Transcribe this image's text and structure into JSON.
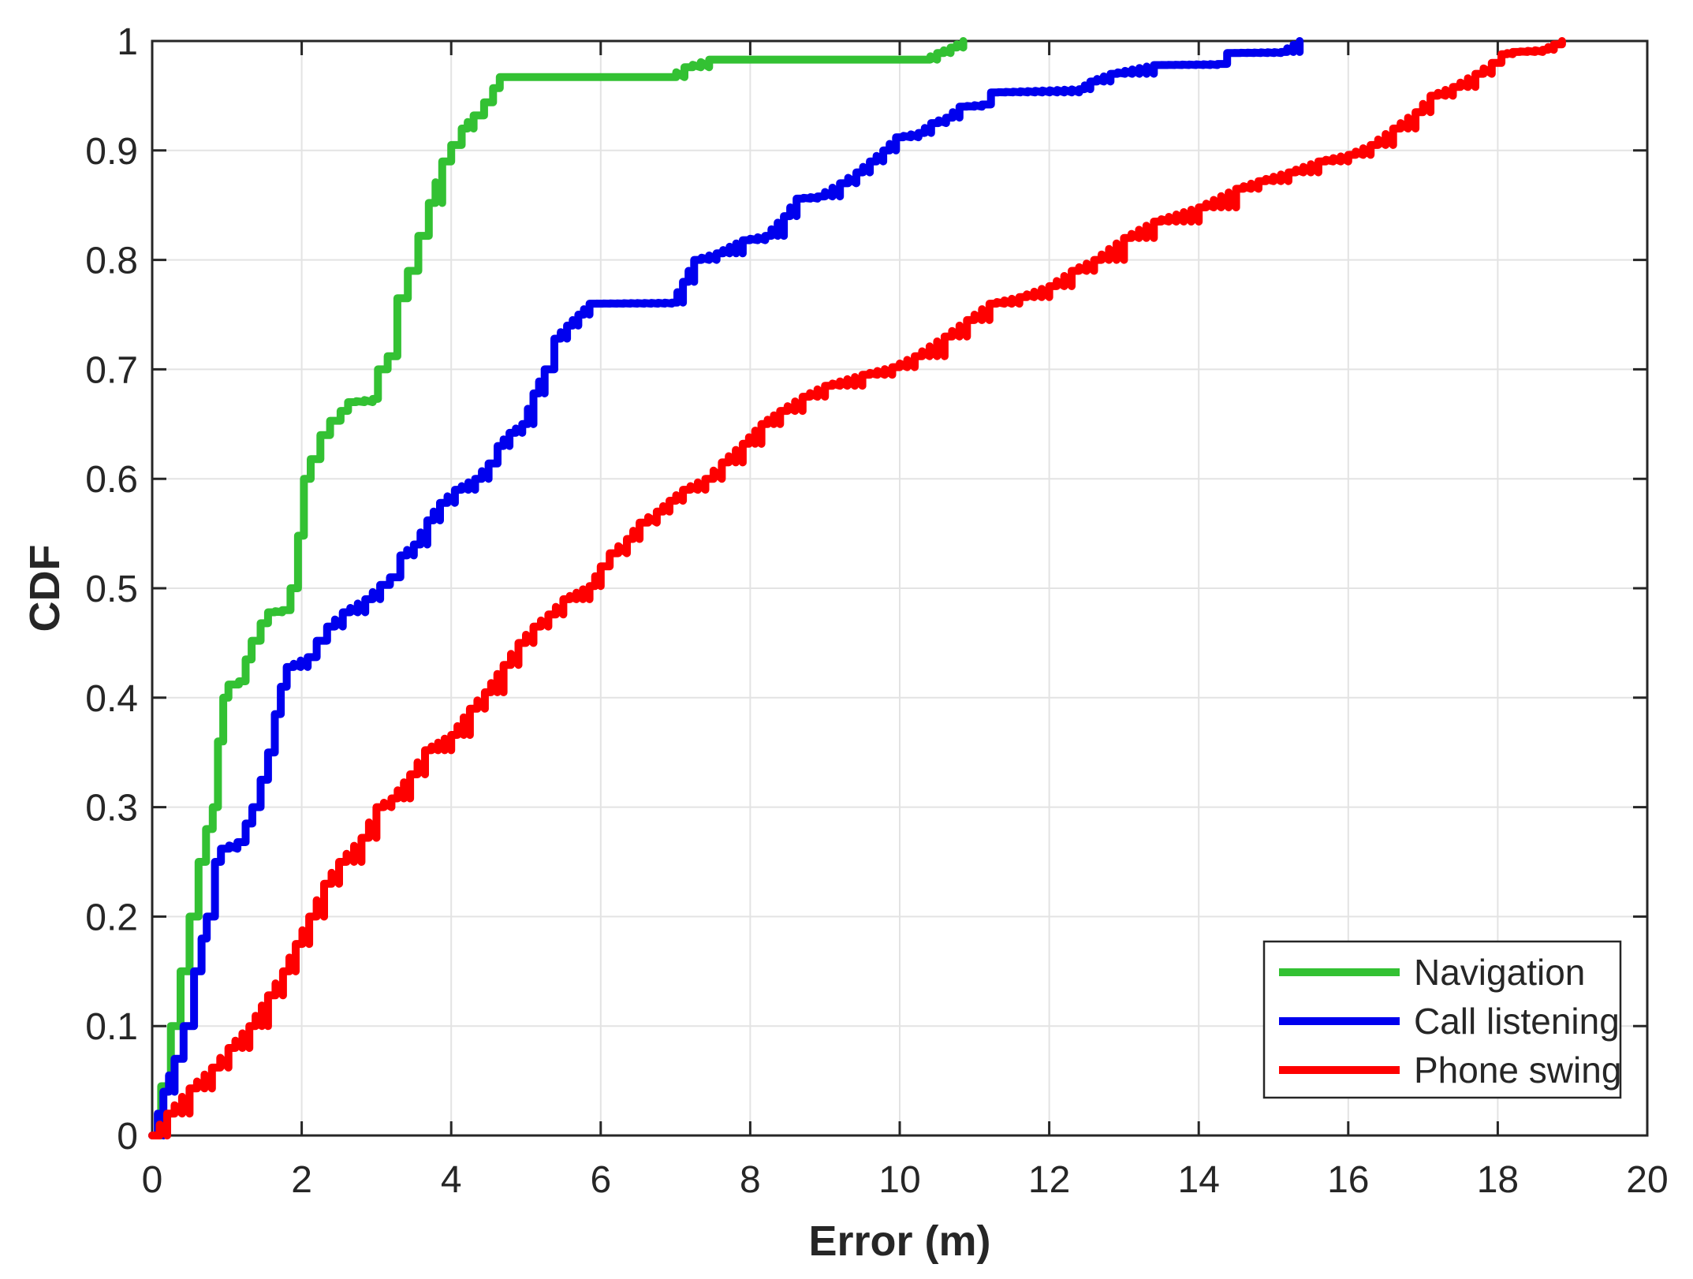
{
  "chart_data": {
    "type": "line",
    "subtype": "empirical-cdf-staircase",
    "title": "",
    "xlabel": "Error (m)",
    "ylabel": "CDF",
    "xlim": [
      0,
      20
    ],
    "ylim": [
      0,
      1
    ],
    "grid": true,
    "x_ticks": [
      0,
      2,
      4,
      6,
      8,
      10,
      12,
      14,
      16,
      18,
      20
    ],
    "x_tick_labels": [
      "0",
      "2",
      "4",
      "6",
      "8",
      "10",
      "12",
      "14",
      "16",
      "18",
      "20"
    ],
    "y_ticks": [
      0,
      0.1,
      0.2,
      0.3,
      0.4,
      0.5,
      0.6,
      0.7,
      0.8,
      0.9,
      1
    ],
    "y_tick_labels": [
      "0",
      "0.1",
      "0.2",
      "0.3",
      "0.4",
      "0.5",
      "0.6",
      "0.7",
      "0.8",
      "0.9",
      "1"
    ],
    "legend_position": "bottom-right",
    "frame_color": "#262626",
    "grid_color": "#e3e3e3",
    "series": [
      {
        "name": "Navigation",
        "color": "#33c133",
        "points": [
          [
            0,
            0
          ],
          [
            0.12,
            0.045
          ],
          [
            0.25,
            0.1
          ],
          [
            0.38,
            0.15
          ],
          [
            0.5,
            0.2
          ],
          [
            0.62,
            0.25
          ],
          [
            0.72,
            0.28
          ],
          [
            0.81,
            0.3
          ],
          [
            0.88,
            0.36
          ],
          [
            0.95,
            0.4
          ],
          [
            1.02,
            0.412
          ],
          [
            1.16,
            0.415
          ],
          [
            1.25,
            0.435
          ],
          [
            1.33,
            0.452
          ],
          [
            1.45,
            0.468
          ],
          [
            1.55,
            0.478
          ],
          [
            1.74,
            0.48
          ],
          [
            1.85,
            0.5
          ],
          [
            1.95,
            0.548
          ],
          [
            2.03,
            0.6
          ],
          [
            2.12,
            0.618
          ],
          [
            2.25,
            0.64
          ],
          [
            2.38,
            0.653
          ],
          [
            2.52,
            0.662
          ],
          [
            2.62,
            0.67
          ],
          [
            2.95,
            0.673
          ],
          [
            3.02,
            0.7
          ],
          [
            3.15,
            0.712
          ],
          [
            3.28,
            0.765
          ],
          [
            3.42,
            0.79
          ],
          [
            3.56,
            0.822
          ],
          [
            3.7,
            0.852
          ],
          [
            3.88,
            0.89
          ],
          [
            4.0,
            0.905
          ],
          [
            4.14,
            0.92
          ],
          [
            4.3,
            0.932
          ],
          [
            4.44,
            0.944
          ],
          [
            4.56,
            0.957
          ],
          [
            4.65,
            0.967
          ],
          [
            6.9,
            0.967
          ],
          [
            7.12,
            0.976
          ],
          [
            7.45,
            0.983
          ],
          [
            10.32,
            0.983
          ],
          [
            10.5,
            0.989
          ],
          [
            10.68,
            0.994
          ],
          [
            10.85,
            1.0
          ]
        ]
      },
      {
        "name": "Call listening",
        "color": "#0000ee",
        "points": [
          [
            0,
            0
          ],
          [
            0.15,
            0.04
          ],
          [
            0.3,
            0.07
          ],
          [
            0.42,
            0.1
          ],
          [
            0.56,
            0.15
          ],
          [
            0.66,
            0.18
          ],
          [
            0.73,
            0.2
          ],
          [
            0.84,
            0.25
          ],
          [
            0.92,
            0.262
          ],
          [
            1.14,
            0.268
          ],
          [
            1.25,
            0.285
          ],
          [
            1.34,
            0.3
          ],
          [
            1.45,
            0.325
          ],
          [
            1.55,
            0.35
          ],
          [
            1.64,
            0.385
          ],
          [
            1.72,
            0.41
          ],
          [
            1.8,
            0.428
          ],
          [
            2.08,
            0.437
          ],
          [
            2.2,
            0.452
          ],
          [
            2.34,
            0.465
          ],
          [
            2.55,
            0.478
          ],
          [
            2.85,
            0.49
          ],
          [
            3.05,
            0.503
          ],
          [
            3.18,
            0.51
          ],
          [
            3.32,
            0.53
          ],
          [
            3.5,
            0.54
          ],
          [
            3.68,
            0.562
          ],
          [
            3.85,
            0.578
          ],
          [
            4.05,
            0.59
          ],
          [
            4.32,
            0.6
          ],
          [
            4.5,
            0.614
          ],
          [
            4.62,
            0.63
          ],
          [
            4.78,
            0.642
          ],
          [
            4.95,
            0.65
          ],
          [
            5.1,
            0.678
          ],
          [
            5.25,
            0.7
          ],
          [
            5.38,
            0.728
          ],
          [
            5.55,
            0.74
          ],
          [
            5.7,
            0.75
          ],
          [
            5.85,
            0.76
          ],
          [
            6.95,
            0.761
          ],
          [
            7.1,
            0.78
          ],
          [
            7.25,
            0.8
          ],
          [
            7.55,
            0.806
          ],
          [
            7.9,
            0.818
          ],
          [
            8.2,
            0.822
          ],
          [
            8.45,
            0.84
          ],
          [
            8.62,
            0.856
          ],
          [
            8.9,
            0.858
          ],
          [
            9.2,
            0.87
          ],
          [
            9.42,
            0.88
          ],
          [
            9.6,
            0.89
          ],
          [
            9.78,
            0.9
          ],
          [
            9.95,
            0.912
          ],
          [
            10.25,
            0.916
          ],
          [
            10.42,
            0.925
          ],
          [
            10.62,
            0.93
          ],
          [
            10.8,
            0.94
          ],
          [
            11.1,
            0.942
          ],
          [
            11.22,
            0.953
          ],
          [
            12.4,
            0.956
          ],
          [
            12.55,
            0.963
          ],
          [
            12.82,
            0.97
          ],
          [
            13.4,
            0.978
          ],
          [
            14.25,
            0.979
          ],
          [
            14.38,
            0.989
          ],
          [
            15.1,
            0.99
          ],
          [
            15.35,
            1.0
          ]
        ]
      },
      {
        "name": "Phone swing",
        "color": "#fe0000",
        "points": [
          [
            0,
            0
          ],
          [
            0.2,
            0.02
          ],
          [
            0.5,
            0.043
          ],
          [
            0.8,
            0.062
          ],
          [
            1.02,
            0.08
          ],
          [
            1.3,
            0.1
          ],
          [
            1.55,
            0.128
          ],
          [
            1.75,
            0.15
          ],
          [
            1.92,
            0.175
          ],
          [
            2.1,
            0.2
          ],
          [
            2.3,
            0.23
          ],
          [
            2.5,
            0.25
          ],
          [
            2.8,
            0.272
          ],
          [
            3.0,
            0.3
          ],
          [
            3.2,
            0.308
          ],
          [
            3.45,
            0.33
          ],
          [
            3.65,
            0.352
          ],
          [
            4.0,
            0.366
          ],
          [
            4.25,
            0.39
          ],
          [
            4.45,
            0.405
          ],
          [
            4.7,
            0.43
          ],
          [
            4.9,
            0.45
          ],
          [
            5.1,
            0.465
          ],
          [
            5.3,
            0.476
          ],
          [
            5.5,
            0.49
          ],
          [
            5.85,
            0.502
          ],
          [
            6.0,
            0.52
          ],
          [
            6.12,
            0.532
          ],
          [
            6.35,
            0.545
          ],
          [
            6.52,
            0.56
          ],
          [
            6.75,
            0.57
          ],
          [
            6.92,
            0.58
          ],
          [
            7.1,
            0.59
          ],
          [
            7.4,
            0.6
          ],
          [
            7.62,
            0.615
          ],
          [
            7.9,
            0.632
          ],
          [
            8.15,
            0.65
          ],
          [
            8.4,
            0.662
          ],
          [
            8.7,
            0.675
          ],
          [
            9.0,
            0.685
          ],
          [
            9.5,
            0.695
          ],
          [
            9.9,
            0.702
          ],
          [
            10.2,
            0.712
          ],
          [
            10.6,
            0.73
          ],
          [
            10.9,
            0.745
          ],
          [
            11.2,
            0.76
          ],
          [
            11.6,
            0.766
          ],
          [
            12.0,
            0.776
          ],
          [
            12.3,
            0.79
          ],
          [
            12.6,
            0.8
          ],
          [
            13.0,
            0.82
          ],
          [
            13.4,
            0.835
          ],
          [
            14.0,
            0.848
          ],
          [
            14.5,
            0.865
          ],
          [
            14.8,
            0.872
          ],
          [
            15.2,
            0.88
          ],
          [
            15.6,
            0.89
          ],
          [
            16.0,
            0.896
          ],
          [
            16.3,
            0.905
          ],
          [
            16.6,
            0.92
          ],
          [
            16.9,
            0.935
          ],
          [
            17.1,
            0.95
          ],
          [
            17.4,
            0.958
          ],
          [
            17.7,
            0.97
          ],
          [
            17.92,
            0.98
          ],
          [
            18.05,
            0.988
          ],
          [
            18.2,
            0.99
          ],
          [
            18.6,
            0.992
          ],
          [
            18.75,
            0.997
          ],
          [
            18.86,
            1.0
          ]
        ]
      }
    ]
  }
}
